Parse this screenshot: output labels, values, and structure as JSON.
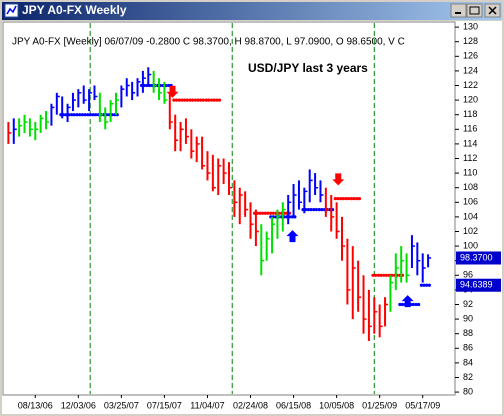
{
  "chart_data": {
    "type": "ohlc",
    "title": "JPY A0-FX Weekly",
    "header": "JPY A0-FX [Weekly] 06/07/09 -0.2800 C 98.3700, H 98.8700, L 97.0900, O 98.6500, V C",
    "annotation": "USD/JPY last 3 years",
    "xlim": [
      -1,
      83
    ],
    "ylim": [
      79.6,
      130.7
    ],
    "yticks": [
      80,
      82,
      84,
      86,
      88,
      90,
      92,
      94,
      96,
      98,
      100,
      102,
      104,
      106,
      108,
      110,
      112,
      114,
      116,
      118,
      120,
      122,
      124,
      126,
      128,
      130
    ],
    "xticks": [
      {
        "value": 5,
        "label": "08/13/06"
      },
      {
        "value": 13,
        "label": "12/03/06"
      },
      {
        "value": 21,
        "label": "03/25/07"
      },
      {
        "value": 29,
        "label": "07/15/07"
      },
      {
        "value": 37,
        "label": "11/04/07"
      },
      {
        "value": 45,
        "label": "02/24/08"
      },
      {
        "value": 53,
        "label": "06/15/08"
      },
      {
        "value": 61,
        "label": "10/05/08"
      },
      {
        "value": 69,
        "label": "01/25/09"
      },
      {
        "value": 77,
        "label": "05/17/09"
      }
    ],
    "year_lines": [
      15.2,
      41.6,
      68
    ],
    "palette": {
      "r": "#ff0000",
      "g": "#00e000",
      "b": "#0000ff"
    },
    "trend": "rbggggggbbbbbbbbbggggbbbbbbgggrrrrrrrrrrrrrrrrrgggggbbbbbbbrrrrrrrrrrrrggggbbbb",
    "high": [
      117,
      117.5,
      117.5,
      118,
      117.5,
      117,
      118,
      118.5,
      119.5,
      121,
      120.5,
      119.5,
      121,
      121.5,
      122,
      121.5,
      122,
      121,
      119,
      120,
      121,
      122,
      123,
      122.5,
      123,
      124,
      124.5,
      124,
      123,
      122.5,
      121,
      118,
      117,
      117.5,
      116,
      115,
      115,
      113,
      112.5,
      112,
      112,
      111.5,
      109,
      108,
      107.5,
      106,
      105,
      103,
      102,
      104,
      105,
      106,
      107,
      108.5,
      109,
      108,
      110.5,
      110,
      109,
      108,
      107,
      106,
      104,
      101,
      100,
      98,
      96,
      94,
      93,
      92,
      93,
      96,
      99,
      100,
      99,
      101.5,
      100.5,
      99,
      98.87
    ],
    "low": [
      114,
      114,
      115,
      115.5,
      115,
      114.5,
      115.5,
      116,
      116.5,
      118,
      117.5,
      117,
      118.5,
      119,
      119.5,
      118.5,
      120,
      117,
      116,
      117,
      118,
      119,
      120.5,
      120,
      120.5,
      121,
      122,
      121,
      120,
      119.5,
      116,
      113,
      113,
      114,
      112,
      111.5,
      110.5,
      109,
      107.5,
      107,
      108.5,
      107,
      104,
      103,
      104,
      101,
      100,
      96,
      98,
      99,
      101,
      102,
      103,
      104,
      105,
      104.5,
      106,
      107,
      106,
      104,
      102,
      101,
      98,
      92,
      90,
      91,
      88,
      87,
      88,
      87.5,
      89,
      91,
      94,
      95,
      95,
      97,
      96,
      95,
      97.09
    ],
    "close": [
      115.5,
      116,
      116.5,
      117,
      116,
      116,
      117.5,
      117,
      119,
      120.5,
      118,
      119,
      120,
      121,
      120,
      121,
      120.5,
      118,
      117,
      119.5,
      120,
      121.5,
      122,
      121,
      122.5,
      123,
      123.5,
      122,
      121,
      120,
      117,
      114.5,
      116,
      115,
      113,
      114,
      111,
      110,
      108,
      111,
      110,
      108,
      106,
      107,
      105,
      103,
      102,
      98,
      101,
      103,
      104,
      105,
      106,
      107,
      106,
      107.5,
      109,
      108,
      107,
      105,
      104,
      102,
      100,
      94,
      97,
      93,
      90,
      89,
      91,
      89,
      92,
      95,
      97,
      98,
      96,
      100,
      98,
      97,
      98.37
    ],
    "stop_blue": [
      null,
      null,
      null,
      null,
      null,
      null,
      null,
      null,
      null,
      null,
      118,
      118,
      118,
      118,
      118,
      118,
      118,
      118,
      118,
      118,
      118,
      null,
      null,
      null,
      null,
      122,
      122,
      122,
      122,
      122,
      122,
      null,
      null,
      null,
      null,
      null,
      null,
      null,
      null,
      null,
      null,
      null,
      null,
      null,
      null,
      null,
      null,
      null,
      null,
      104,
      104,
      104,
      104,
      104,
      null,
      105,
      105,
      105,
      105,
      105,
      105,
      null,
      null,
      null,
      null,
      null,
      null,
      null,
      null,
      null,
      null,
      null,
      null,
      92,
      92,
      92,
      92,
      94.6389,
      94.6389
    ],
    "stop_red": [
      null,
      null,
      null,
      null,
      null,
      null,
      null,
      null,
      null,
      null,
      null,
      null,
      null,
      null,
      null,
      null,
      null,
      null,
      null,
      null,
      null,
      null,
      null,
      null,
      null,
      null,
      null,
      null,
      null,
      null,
      null,
      120,
      120,
      120,
      120,
      120,
      120,
      120,
      120,
      120,
      null,
      null,
      null,
      null,
      null,
      null,
      104.5,
      104.5,
      104.5,
      104.5,
      104.5,
      104.5,
      104.5,
      null,
      null,
      null,
      null,
      null,
      null,
      null,
      null,
      106.5,
      106.5,
      106.5,
      106.5,
      106.5,
      null,
      null,
      96,
      96,
      96,
      96,
      96,
      96,
      null,
      null,
      null,
      null,
      null
    ],
    "arrows": [
      {
        "x": 30.5,
        "value": 121,
        "dir": "down",
        "color": "#ff0000"
      },
      {
        "x": 61.3,
        "value": 109,
        "dir": "down",
        "color": "#ff0000"
      },
      {
        "x": 52.8,
        "value": 101.5,
        "dir": "up",
        "color": "#0000ff"
      },
      {
        "x": 74.2,
        "value": 92.6,
        "dir": "up",
        "color": "#0000ff"
      }
    ],
    "last_labels": [
      {
        "value": 98.37,
        "label": "98.3700",
        "color": "#0000cc"
      },
      {
        "value": 94.6389,
        "label": "94.6389",
        "color": "#0000cc"
      }
    ]
  }
}
